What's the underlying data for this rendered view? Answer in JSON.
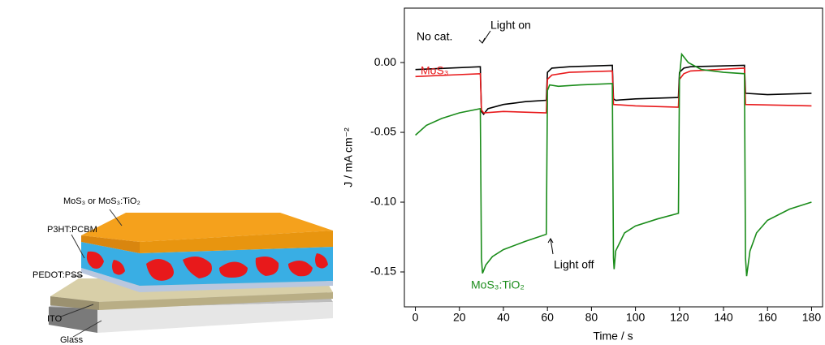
{
  "diagram": {
    "labels": [
      "MoS₃ or MoS₃:TiO₂",
      "P3HT:PCBM",
      "PEDOT:PSS",
      "ITO",
      "Glass"
    ]
  },
  "chart_data": {
    "type": "line",
    "x_label": "Time / s",
    "y_label": "J / mA cm⁻²",
    "annotations": [
      "Light on",
      "Light off"
    ],
    "xlim": [
      -5,
      185
    ],
    "xticks": [
      0,
      20,
      40,
      60,
      80,
      100,
      120,
      140,
      160,
      180
    ],
    "ylim": [
      -0.175,
      0.039
    ],
    "yticks": [
      {
        "value": 0,
        "label": "0.00"
      },
      -0.05,
      {
        "value": -0.1,
        "label": "-0.10"
      },
      -0.15
    ],
    "series": [
      {
        "name": "No cat.",
        "color": "#000000",
        "x": [
          0,
          15,
          29.5,
          30,
          31,
          33,
          40,
          50,
          59.5,
          60,
          62,
          70,
          89.5,
          90,
          91,
          100,
          119.5,
          120,
          122,
          125,
          149.5,
          150,
          160,
          180
        ],
        "values": [
          -0.005,
          -0.004,
          -0.003,
          -0.035,
          -0.037,
          -0.033,
          -0.03,
          -0.028,
          -0.027,
          -0.007,
          -0.004,
          -0.003,
          -0.002,
          -0.026,
          -0.027,
          -0.026,
          -0.025,
          -0.007,
          -0.004,
          -0.003,
          -0.002,
          -0.022,
          -0.023,
          -0.022
        ]
      },
      {
        "name": "MoS₃",
        "color": "#e8191b",
        "x": [
          0,
          15,
          29.5,
          30,
          31,
          40,
          59.5,
          60,
          62,
          70,
          89.5,
          90,
          100,
          119.5,
          120,
          122,
          125,
          149.5,
          150,
          180
        ],
        "values": [
          -0.01,
          -0.009,
          -0.008,
          -0.034,
          -0.036,
          -0.035,
          -0.036,
          -0.012,
          -0.009,
          -0.007,
          -0.006,
          -0.03,
          -0.031,
          -0.032,
          -0.012,
          -0.008,
          -0.006,
          -0.004,
          -0.03,
          -0.031
        ]
      },
      {
        "name": "MoS₃:TiO₂",
        "color": "#1a8c1a",
        "x": [
          0,
          5,
          12,
          20,
          29.5,
          30,
          30.5,
          32,
          35,
          40,
          50,
          59.5,
          60,
          61,
          65,
          75,
          89.5,
          90,
          90.3,
          91,
          95,
          100,
          110,
          119.5,
          120,
          121,
          124,
          130,
          140,
          149.5,
          150,
          150.5,
          152,
          155,
          160,
          170,
          180
        ],
        "values": [
          -0.052,
          -0.045,
          -0.04,
          -0.036,
          -0.033,
          -0.14,
          -0.151,
          -0.145,
          -0.139,
          -0.134,
          -0.128,
          -0.123,
          -0.02,
          -0.016,
          -0.017,
          -0.016,
          -0.015,
          -0.14,
          -0.148,
          -0.135,
          -0.122,
          -0.117,
          -0.112,
          -0.108,
          -0.01,
          0.006,
          0.0,
          -0.005,
          -0.007,
          -0.008,
          -0.14,
          -0.153,
          -0.135,
          -0.122,
          -0.113,
          -0.105,
          -0.1
        ]
      }
    ]
  }
}
